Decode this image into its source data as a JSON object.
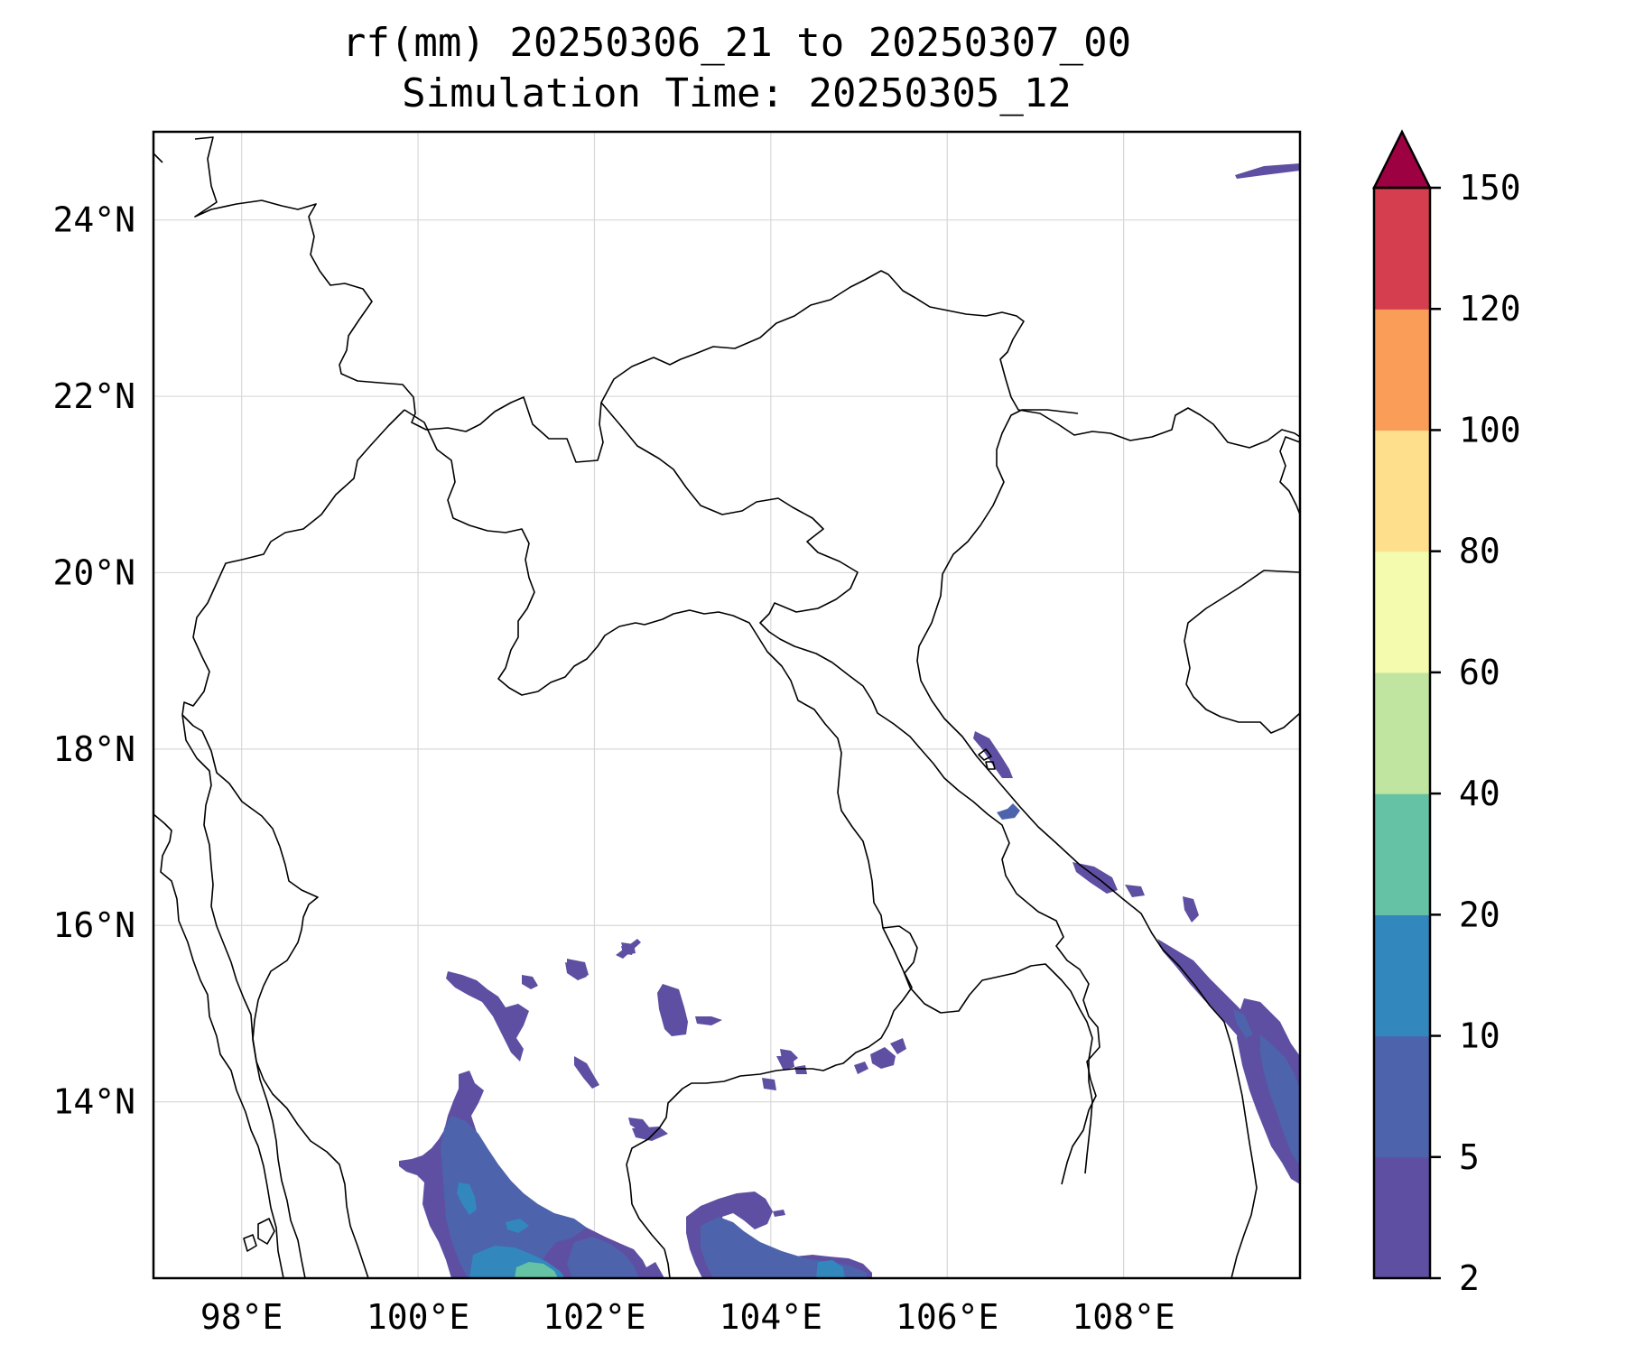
{
  "title": {
    "line1": "rf(mm) 20250306_21 to 20250307_00",
    "line2": "Simulation Time: 20250305_12"
  },
  "map": {
    "lon_range": [
      97,
      110
    ],
    "lat_range": [
      12,
      25
    ],
    "x_ticks": [
      {
        "value": 98,
        "label": "98°E"
      },
      {
        "value": 100,
        "label": "100°E"
      },
      {
        "value": 102,
        "label": "102°E"
      },
      {
        "value": 104,
        "label": "104°E"
      },
      {
        "value": 106,
        "label": "106°E"
      },
      {
        "value": 108,
        "label": "108°E"
      }
    ],
    "y_ticks": [
      {
        "value": 14,
        "label": "14°N"
      },
      {
        "value": 16,
        "label": "16°N"
      },
      {
        "value": 18,
        "label": "18°N"
      },
      {
        "value": 20,
        "label": "20°N"
      },
      {
        "value": 22,
        "label": "22°N"
      },
      {
        "value": 24,
        "label": "24°N"
      }
    ],
    "gridlines": true
  },
  "colorbar": {
    "levels": [
      2,
      5,
      10,
      20,
      40,
      60,
      80,
      100,
      120,
      150
    ],
    "labels": [
      "2",
      "5",
      "10",
      "20",
      "40",
      "60",
      "80",
      "100",
      "120",
      "150"
    ],
    "colors": [
      "#5e4fa2",
      "#4d63ac",
      "#3288bd",
      "#66c2a5",
      "#bfe5a0",
      "#f4fbae",
      "#fddf8c",
      "#f99d59",
      "#d53e4f"
    ],
    "extend_color": "#9e0142",
    "extend": "max"
  }
}
